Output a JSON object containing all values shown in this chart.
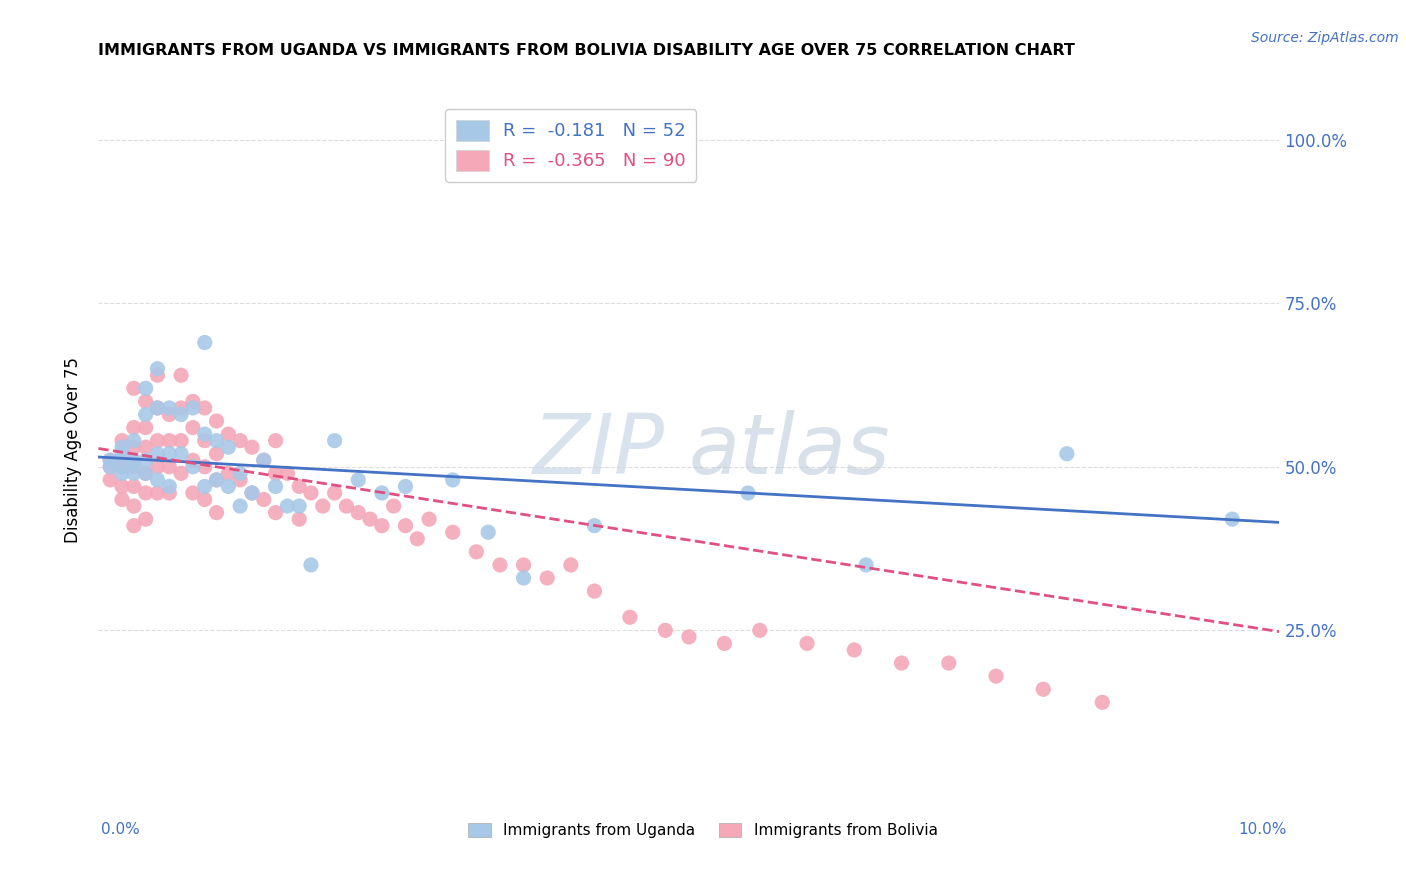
{
  "title": "IMMIGRANTS FROM UGANDA VS IMMIGRANTS FROM BOLIVIA DISABILITY AGE OVER 75 CORRELATION CHART",
  "source": "Source: ZipAtlas.com",
  "ylabel": "Disability Age Over 75",
  "xlim": [
    0.0,
    0.1
  ],
  "ylim": [
    0.0,
    1.05
  ],
  "legend_uganda": "R =  -0.181   N = 52",
  "legend_bolivia": "R =  -0.365   N = 90",
  "color_uganda": "#a8c8e8",
  "color_bolivia": "#f4a8b8",
  "color_uganda_line": "#4472c4",
  "color_bolivia_line": "#e05080",
  "watermark_zip": "ZIP",
  "watermark_atlas": "atlas",
  "background_color": "#ffffff",
  "grid_color": "#dddddd",
  "scatter_uganda_x": [
    0.001,
    0.001,
    0.002,
    0.002,
    0.002,
    0.002,
    0.003,
    0.003,
    0.003,
    0.003,
    0.004,
    0.004,
    0.004,
    0.004,
    0.005,
    0.005,
    0.005,
    0.005,
    0.006,
    0.006,
    0.006,
    0.007,
    0.007,
    0.008,
    0.008,
    0.009,
    0.009,
    0.009,
    0.01,
    0.01,
    0.011,
    0.011,
    0.012,
    0.012,
    0.013,
    0.014,
    0.015,
    0.016,
    0.017,
    0.018,
    0.02,
    0.022,
    0.024,
    0.026,
    0.03,
    0.033,
    0.036,
    0.042,
    0.055,
    0.065,
    0.082,
    0.096
  ],
  "scatter_uganda_y": [
    0.5,
    0.51,
    0.52,
    0.5,
    0.49,
    0.53,
    0.54,
    0.51,
    0.49,
    0.505,
    0.62,
    0.58,
    0.51,
    0.49,
    0.65,
    0.59,
    0.52,
    0.48,
    0.59,
    0.52,
    0.47,
    0.58,
    0.52,
    0.59,
    0.5,
    0.69,
    0.55,
    0.47,
    0.54,
    0.48,
    0.53,
    0.47,
    0.49,
    0.44,
    0.46,
    0.51,
    0.47,
    0.44,
    0.44,
    0.35,
    0.54,
    0.48,
    0.46,
    0.47,
    0.48,
    0.4,
    0.33,
    0.41,
    0.46,
    0.35,
    0.52,
    0.42
  ],
  "scatter_bolivia_x": [
    0.001,
    0.001,
    0.001,
    0.002,
    0.002,
    0.002,
    0.002,
    0.002,
    0.003,
    0.003,
    0.003,
    0.003,
    0.003,
    0.003,
    0.003,
    0.004,
    0.004,
    0.004,
    0.004,
    0.004,
    0.004,
    0.005,
    0.005,
    0.005,
    0.005,
    0.005,
    0.006,
    0.006,
    0.006,
    0.006,
    0.007,
    0.007,
    0.007,
    0.007,
    0.008,
    0.008,
    0.008,
    0.008,
    0.009,
    0.009,
    0.009,
    0.009,
    0.01,
    0.01,
    0.01,
    0.01,
    0.011,
    0.011,
    0.012,
    0.012,
    0.013,
    0.013,
    0.014,
    0.014,
    0.015,
    0.015,
    0.015,
    0.016,
    0.017,
    0.017,
    0.018,
    0.019,
    0.02,
    0.021,
    0.022,
    0.023,
    0.024,
    0.025,
    0.026,
    0.027,
    0.028,
    0.03,
    0.032,
    0.034,
    0.036,
    0.038,
    0.04,
    0.042,
    0.045,
    0.048,
    0.05,
    0.053,
    0.056,
    0.06,
    0.064,
    0.068,
    0.072,
    0.076,
    0.08,
    0.085
  ],
  "scatter_bolivia_y": [
    0.51,
    0.5,
    0.48,
    0.54,
    0.51,
    0.5,
    0.47,
    0.45,
    0.62,
    0.56,
    0.53,
    0.5,
    0.47,
    0.44,
    0.41,
    0.6,
    0.56,
    0.53,
    0.49,
    0.46,
    0.42,
    0.64,
    0.59,
    0.54,
    0.5,
    0.46,
    0.58,
    0.54,
    0.5,
    0.46,
    0.64,
    0.59,
    0.54,
    0.49,
    0.6,
    0.56,
    0.51,
    0.46,
    0.59,
    0.54,
    0.5,
    0.45,
    0.57,
    0.52,
    0.48,
    0.43,
    0.55,
    0.49,
    0.54,
    0.48,
    0.53,
    0.46,
    0.51,
    0.45,
    0.54,
    0.49,
    0.43,
    0.49,
    0.47,
    0.42,
    0.46,
    0.44,
    0.46,
    0.44,
    0.43,
    0.42,
    0.41,
    0.44,
    0.41,
    0.39,
    0.42,
    0.4,
    0.37,
    0.35,
    0.35,
    0.33,
    0.35,
    0.31,
    0.27,
    0.25,
    0.24,
    0.23,
    0.25,
    0.23,
    0.22,
    0.2,
    0.2,
    0.18,
    0.16,
    0.14
  ]
}
